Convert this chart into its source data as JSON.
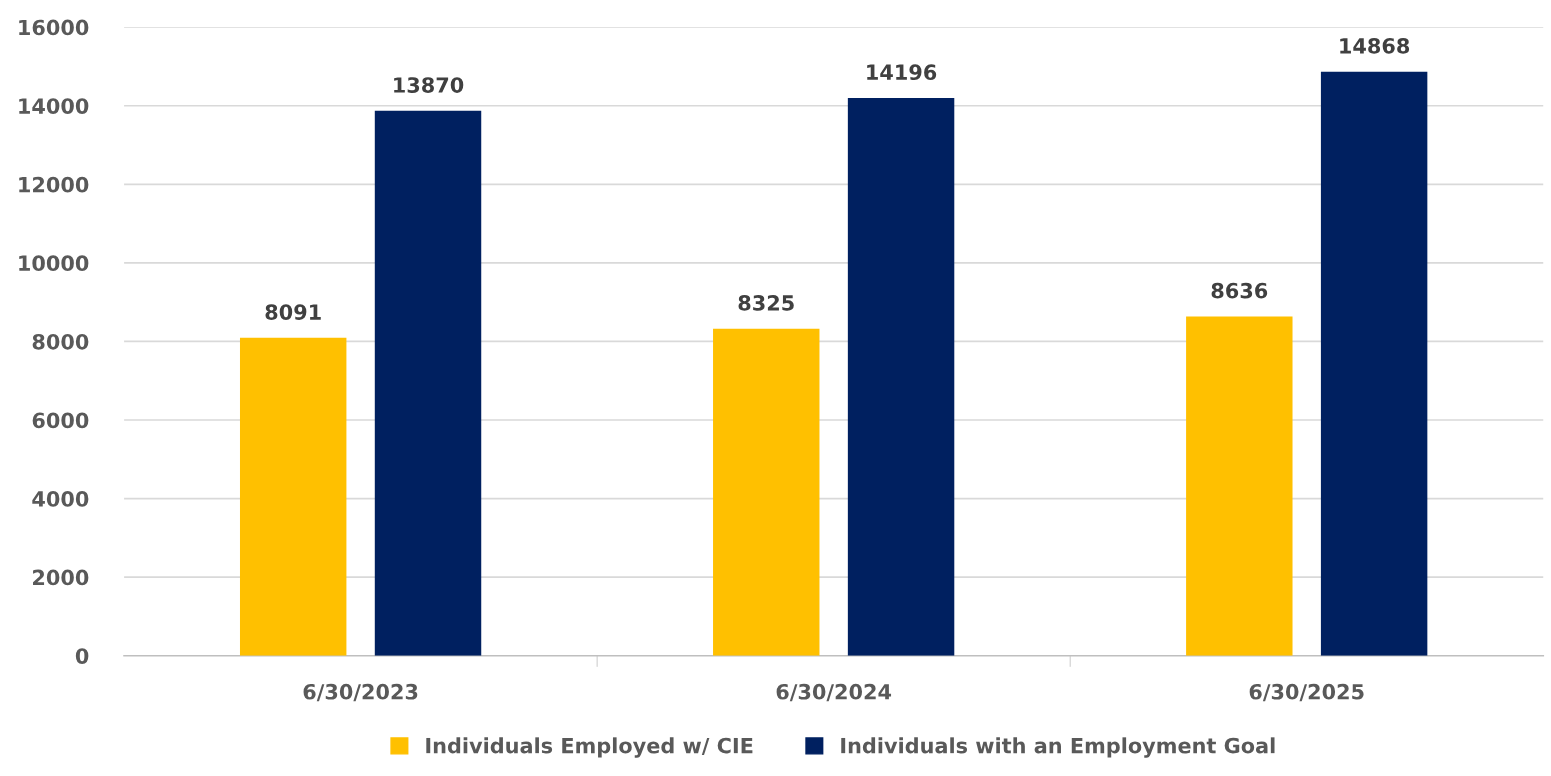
{
  "chart_data": {
    "type": "bar",
    "categories": [
      "6/30/2023",
      "6/30/2024",
      "6/30/2025"
    ],
    "series": [
      {
        "name": "Individuals Employed w/ CIE",
        "color": "#ffc000",
        "values": [
          8091,
          8325,
          8636
        ]
      },
      {
        "name": "Individuals with an Employment Goal",
        "color": "#002060",
        "values": [
          13870,
          14196,
          14868
        ]
      }
    ],
    "ylim": [
      0,
      16000
    ],
    "yticks": [
      0,
      2000,
      4000,
      6000,
      8000,
      10000,
      12000,
      14000,
      16000
    ],
    "grid": "y",
    "legend": "bottom",
    "data_labels": true
  }
}
